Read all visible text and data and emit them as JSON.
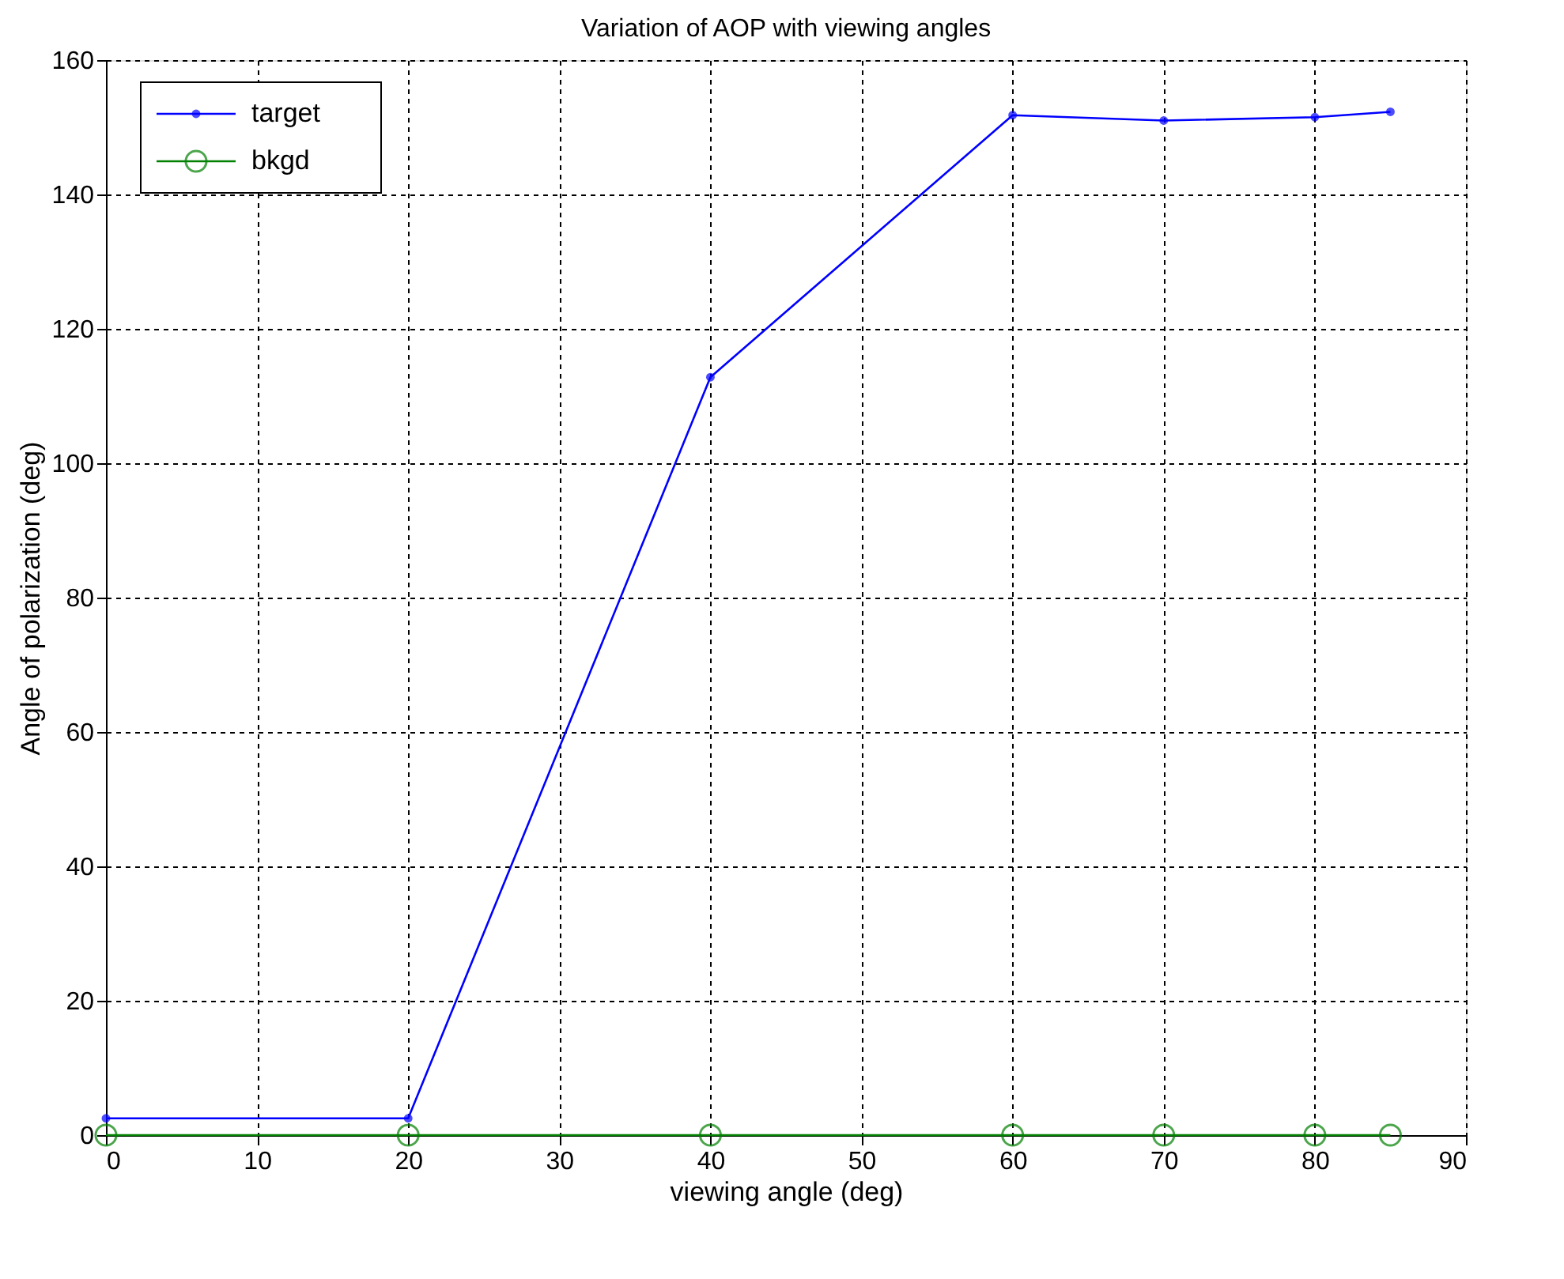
{
  "chart_data": {
    "type": "line",
    "title": "Variation of AOP with viewing angles",
    "xlabel": "viewing angle (deg)",
    "ylabel": "Angle of polarization (deg)",
    "x": [
      0,
      20,
      40,
      60,
      70,
      80,
      85
    ],
    "series": [
      {
        "name": "target",
        "color": "#0000ff",
        "marker": "circle",
        "values": [
          2.5,
          2.5,
          112.8,
          151.8,
          151,
          151.5,
          152.3
        ]
      },
      {
        "name": "bkgd",
        "color": "#008000",
        "marker": "circle_open",
        "values": [
          0,
          0,
          0,
          0,
          0,
          0,
          0
        ]
      }
    ],
    "xlim": [
      0,
      90
    ],
    "xticks": [
      0,
      10,
      20,
      30,
      40,
      50,
      60,
      70,
      80,
      90
    ],
    "ylim": [
      0,
      160
    ],
    "yticks": [
      0,
      20,
      40,
      60,
      80,
      100,
      120,
      140,
      160
    ],
    "grid": true,
    "legend": "top left"
  }
}
